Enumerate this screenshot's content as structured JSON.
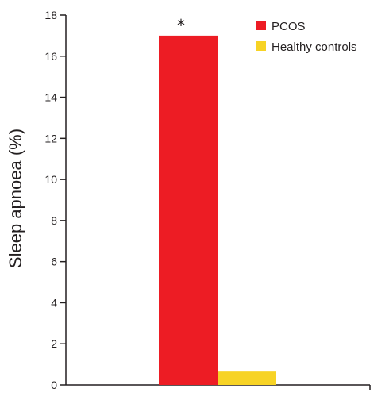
{
  "chart_data": {
    "type": "bar",
    "title": "",
    "xlabel": "",
    "ylabel": "Sleep apnoea (%)",
    "ylim": [
      0,
      18
    ],
    "yticks": [
      0,
      2,
      4,
      6,
      8,
      10,
      12,
      14,
      16,
      18
    ],
    "grid": false,
    "legend_position": "top-right",
    "series": [
      {
        "name": "PCOS",
        "value": 17,
        "color": "#ed1c24"
      },
      {
        "name": "Healthy controls",
        "value": 0.65,
        "color": "#f7d325"
      }
    ],
    "annotations": [
      {
        "text": "*",
        "series": "PCOS"
      }
    ]
  }
}
